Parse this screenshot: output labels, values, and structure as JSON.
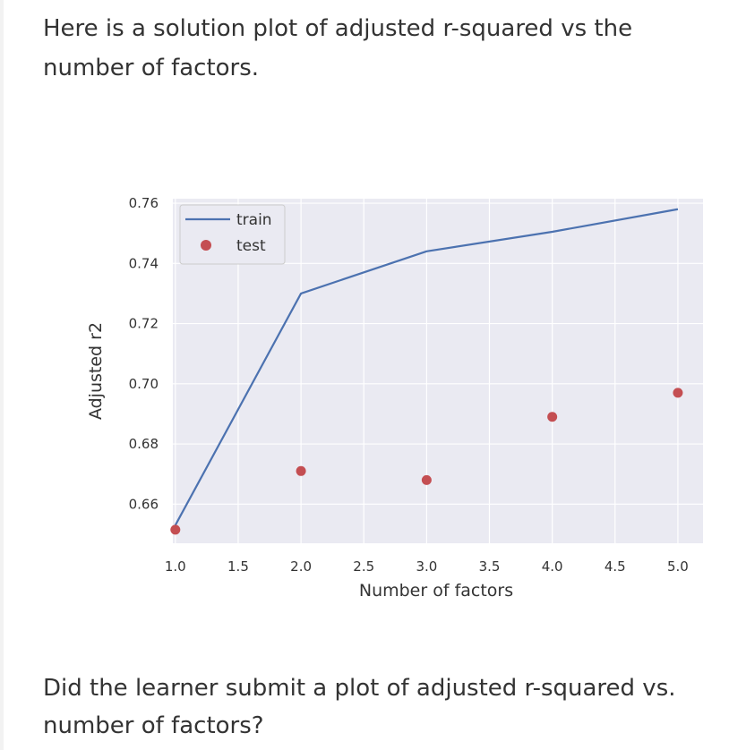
{
  "intro": "Here is a solution plot of adjusted r-squared vs the number of factors.",
  "question": "Did the learner submit a plot of adjusted r-squared vs. number of factors?",
  "chart_data": {
    "type": "line",
    "xlabel": "Number of factors",
    "ylabel": "Adjusted r2",
    "x_ticks": [
      "1.0",
      "1.5",
      "2.0",
      "2.5",
      "3.0",
      "3.5",
      "4.0",
      "4.5",
      "5.0"
    ],
    "y_ticks": [
      "0.66",
      "0.68",
      "0.70",
      "0.72",
      "0.74",
      "0.76"
    ],
    "xlim": [
      0.98,
      5.2
    ],
    "ylim": [
      0.647,
      0.7615
    ],
    "grid": true,
    "legend_position": "top-left",
    "series": [
      {
        "name": "train",
        "style": "line",
        "color": "#4c72b0",
        "x": [
          1,
          2,
          3,
          4,
          5
        ],
        "y": [
          0.653,
          0.73,
          0.744,
          0.7505,
          0.758
        ]
      },
      {
        "name": "test",
        "style": "marker",
        "color": "#c44e52",
        "x": [
          1,
          2,
          3,
          4,
          5
        ],
        "y": [
          0.6515,
          0.671,
          0.668,
          0.689,
          0.697
        ]
      }
    ]
  }
}
